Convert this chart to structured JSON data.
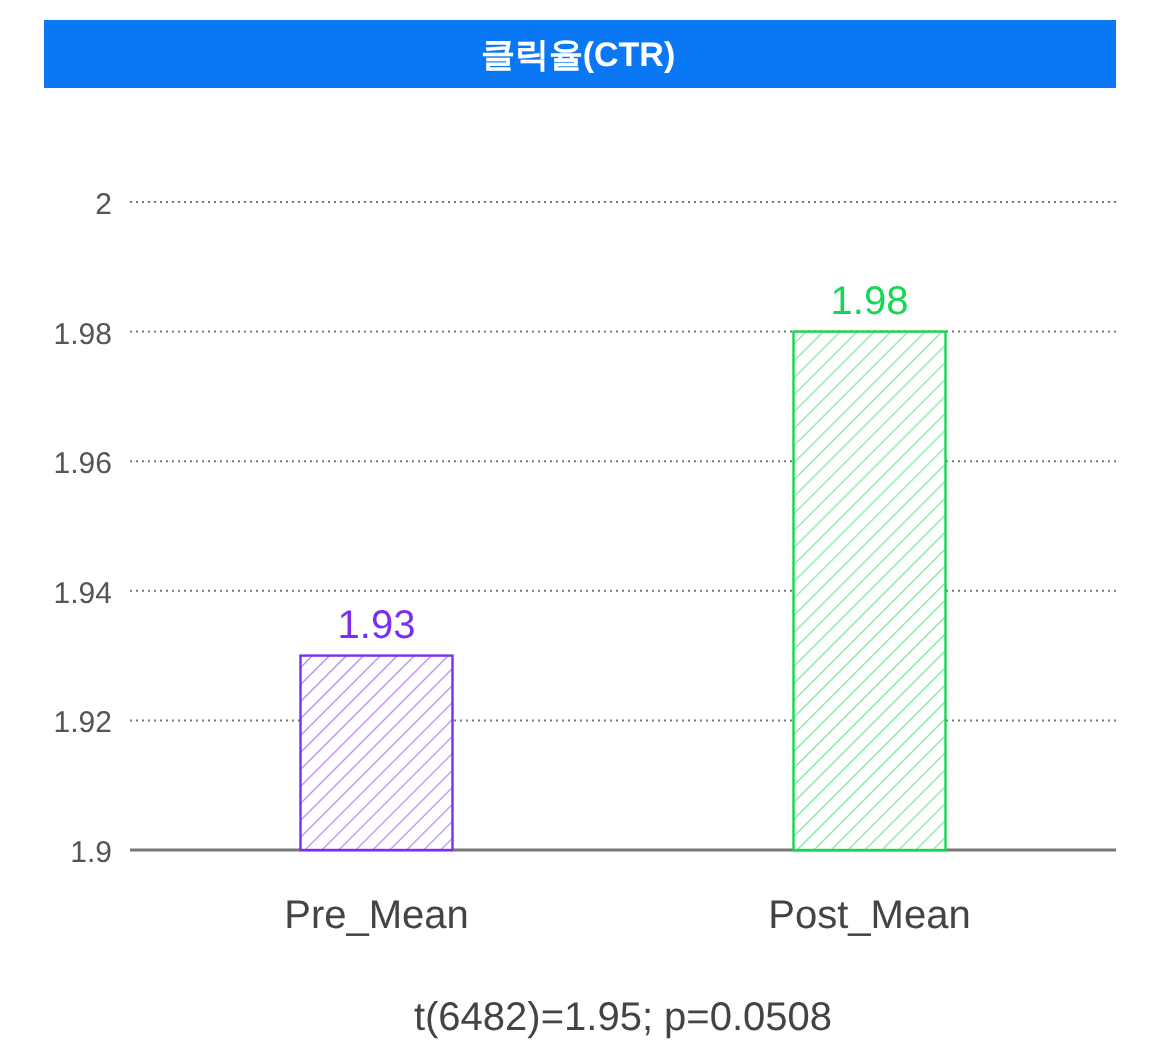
{
  "chart_data": {
    "type": "bar",
    "title": "클릭율(CTR)",
    "categories": [
      "Pre_Mean",
      "Post_Mean"
    ],
    "values": [
      1.93,
      1.98
    ],
    "colors": [
      "#7a2ff0",
      "#16d655"
    ],
    "ylim": [
      1.9,
      2
    ],
    "yticks": [
      1.9,
      1.92,
      1.94,
      1.96,
      1.98,
      2
    ],
    "grid": "y",
    "data_labels": true,
    "annotations": [
      "t(6482)=1.95; p=0.0508"
    ]
  }
}
